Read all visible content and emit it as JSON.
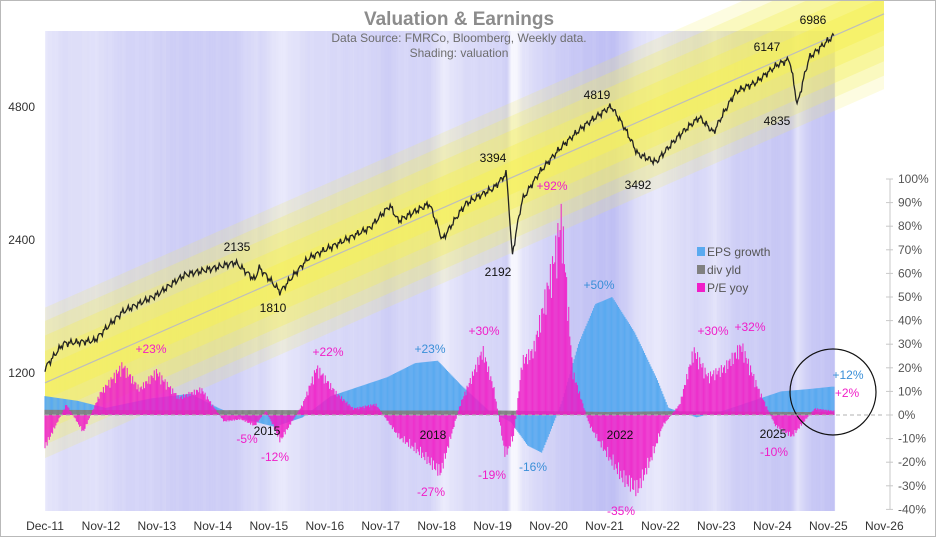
{
  "chart_data": {
    "type": "line",
    "title": "Valuation & Earnings",
    "subtitle_lines": [
      "Data Source: FMRCo, Bloomberg,  Weekly data.",
      "Shading: valuation"
    ],
    "x_tick_labels": [
      "Dec-11",
      "Nov-12",
      "Nov-13",
      "Nov-14",
      "Nov-15",
      "Nov-16",
      "Nov-17",
      "Nov-18",
      "Nov-19",
      "Nov-20",
      "Nov-21",
      "Nov-22",
      "Nov-23",
      "Nov-24",
      "Nov-25",
      "Nov-26"
    ],
    "left_axis": {
      "scale": "log",
      "tick_labels": [
        "1200",
        "2400",
        "4800"
      ],
      "ticks": [
        1200,
        2400,
        4800
      ],
      "range": [
        690,
        8000
      ]
    },
    "right_axis": {
      "tick_labels": [
        "100%",
        "90%",
        "80%",
        "70%",
        "60%",
        "50%",
        "40%",
        "30%",
        "20%",
        "10%",
        "0%",
        "-10%",
        "-20%",
        "-30%",
        "-40%"
      ],
      "ticks": [
        100,
        90,
        80,
        70,
        60,
        50,
        40,
        30,
        20,
        10,
        0,
        -10,
        -20,
        -30,
        -40
      ],
      "range": [
        -40,
        100
      ]
    },
    "legend": {
      "placement": "right",
      "entries": [
        "EPS growth",
        "div yld",
        "P/E yoy"
      ]
    },
    "colors": {
      "eps": "#5aaaf0",
      "div": "#808080",
      "pe": "#f01ec8",
      "price": "#222222",
      "band": "#f5f05a",
      "trend": "#bdbdbd",
      "shade": "#4444dd"
    },
    "price_series": {
      "name": "price",
      "x": [
        2011.92,
        2012.25,
        2012.8,
        2013.3,
        2013.9,
        2014.4,
        2014.9,
        2015.3,
        2015.65,
        2015.72,
        2016.1,
        2016.6,
        2017.2,
        2017.7,
        2018.05,
        2018.2,
        2018.75,
        2018.98,
        2019.4,
        2019.9,
        2020.12,
        2020.22,
        2020.4,
        2020.7,
        2021.1,
        2021.5,
        2021.98,
        2022.2,
        2022.45,
        2022.78,
        2023.2,
        2023.55,
        2023.8,
        2024.2,
        2024.55,
        2024.95,
        2025.15,
        2025.29,
        2025.5,
        2025.95
      ],
      "values": [
        1230,
        1400,
        1420,
        1650,
        1800,
        2000,
        2070,
        2135,
        1950,
        2080,
        1830,
        2180,
        2380,
        2560,
        2870,
        2650,
        2900,
        2400,
        2900,
        3150,
        3394,
        2192,
        2950,
        3400,
        3900,
        4350,
        4819,
        4350,
        3760,
        3600,
        4150,
        4550,
        4200,
        5200,
        5450,
        6000,
        6147,
        4835,
        6200,
        6986
      ]
    },
    "eps_growth": {
      "x": [
        2011.92,
        2012.5,
        2013.0,
        2013.8,
        2014.5,
        2015.0,
        2015.5,
        2016.0,
        2016.5,
        2017.0,
        2017.5,
        2018.0,
        2018.5,
        2018.9,
        2019.3,
        2019.8,
        2020.2,
        2020.5,
        2020.75,
        2021.1,
        2021.4,
        2021.7,
        2022.0,
        2022.4,
        2022.8,
        2023.0,
        2023.5,
        2024.0,
        2024.5,
        2025.0,
        2025.5,
        2025.9
      ],
      "values": [
        8,
        6,
        3,
        7,
        9,
        3,
        -2,
        -5,
        -1,
        8,
        12,
        16,
        22,
        23,
        13,
        2,
        -3,
        -13,
        -16,
        5,
        30,
        47,
        50,
        35,
        15,
        3,
        -1,
        2,
        6,
        10,
        11,
        12
      ]
    },
    "div_yld": {
      "x": [
        2011.92,
        2014.0,
        2016.0,
        2018.0,
        2020.0,
        2021.9,
        2023.0,
        2025.9
      ],
      "values": [
        2.2,
        2.0,
        2.1,
        1.9,
        1.9,
        1.3,
        1.6,
        1.2
      ]
    },
    "pe_yoy": {
      "x": [
        2011.92,
        2012.3,
        2012.6,
        2012.9,
        2013.3,
        2013.6,
        2013.9,
        2014.3,
        2014.7,
        2015.1,
        2015.4,
        2015.65,
        2015.85,
        2016.1,
        2016.5,
        2016.75,
        2017.1,
        2017.4,
        2017.8,
        2018.2,
        2018.6,
        2018.95,
        2019.3,
        2019.7,
        2019.9,
        2020.1,
        2020.25,
        2020.4,
        2020.6,
        2020.95,
        2021.1,
        2021.3,
        2021.6,
        2021.9,
        2022.2,
        2022.45,
        2022.7,
        2022.9,
        2023.2,
        2023.45,
        2023.7,
        2024.0,
        2024.3,
        2024.6,
        2024.9,
        2025.2,
        2025.35,
        2025.6,
        2025.9
      ],
      "values": [
        -15,
        5,
        -8,
        10,
        23,
        12,
        20,
        8,
        12,
        -3,
        -2,
        -5,
        2,
        -12,
        5,
        22,
        10,
        3,
        5,
        -10,
        -18,
        -27,
        5,
        30,
        12,
        -19,
        -10,
        25,
        30,
        70,
        92,
        20,
        -5,
        -18,
        -30,
        -35,
        -20,
        -5,
        5,
        30,
        18,
        22,
        32,
        12,
        -5,
        -10,
        -5,
        3,
        2
      ]
    },
    "annotations_price": [
      "6986",
      "6147",
      "4819",
      "4835",
      "3394",
      "3492",
      "2135",
      "2192",
      "1810"
    ],
    "annotations_eps": [
      "+23%",
      "+50%",
      "-16%",
      "+12%"
    ],
    "annotations_pe": [
      "+23%",
      "+22%",
      "+30%",
      "+92%",
      "+30%",
      "+32%",
      "+2%",
      "-5%",
      "-12%",
      "-27%",
      "-19%",
      "-35%",
      "-10%"
    ],
    "annotations_year": [
      "2015",
      "2018",
      "2022",
      "2025"
    ]
  }
}
